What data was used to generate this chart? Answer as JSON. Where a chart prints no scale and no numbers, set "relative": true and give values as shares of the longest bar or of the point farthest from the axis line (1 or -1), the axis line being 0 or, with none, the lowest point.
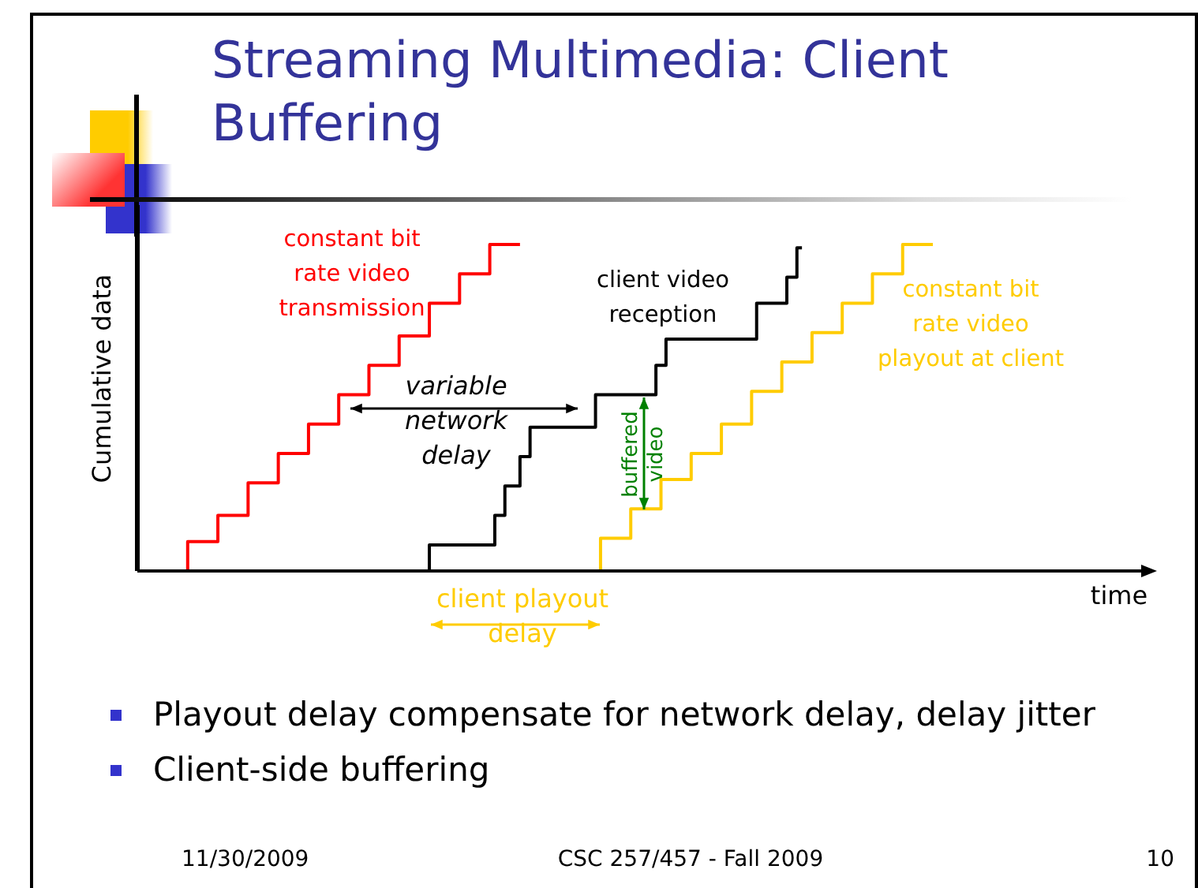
{
  "chart_data": {
    "type": "step",
    "title": "Streaming Multimedia: Client Buffering",
    "xlabel": "time",
    "ylabel": "Cumulative data",
    "relative": true,
    "marker": "none",
    "categories": [
      null,
      null,
      null,
      null,
      null,
      null,
      null,
      null,
      null,
      null,
      null,
      null,
      null,
      null,
      null,
      null,
      null,
      null,
      null,
      null,
      null,
      null,
      null,
      null,
      null,
      null,
      null,
      null,
      null,
      null,
      null,
      null,
      null,
      null,
      null,
      null,
      null,
      null,
      null,
      null,
      null,
      null,
      null,
      null,
      null,
      null,
      null,
      null,
      null,
      null,
      null,
      null,
      null,
      null,
      null,
      null,
      null,
      null,
      null,
      null,
      null,
      null,
      null,
      null,
      null,
      null,
      null,
      null,
      null,
      null,
      null,
      null,
      null,
      null,
      null,
      null,
      null,
      null,
      null,
      null,
      null,
      null,
      null,
      null,
      null,
      null,
      null,
      null,
      null,
      null,
      null,
      null,
      null,
      null,
      null,
      null,
      null,
      null,
      null,
      null,
      null,
      null,
      null,
      null,
      null,
      null,
      null,
      null,
      null,
      null,
      null,
      null,
      null,
      null,
      null,
      null,
      null,
      null,
      null,
      null,
      null,
      null,
      null,
      null,
      null,
      null,
      null,
      null,
      null,
      null,
      null,
      null,
      null,
      null,
      null,
      null,
      null,
      null,
      null,
      null,
      null,
      null,
      null,
      null,
      null,
      null,
      null,
      null,
      null,
      null,
      null,
      null,
      null,
      null,
      null,
      null,
      null,
      null,
      null,
      null,
      null,
      null,
      null,
      null,
      null,
      null,
      null,
      null,
      null,
      null,
      null,
      null,
      null,
      null,
      null,
      null,
      null,
      null,
      null,
      null,
      null,
      null,
      null,
      null,
      null,
      null,
      null,
      null,
      null,
      null,
      null,
      null,
      null,
      null,
      null,
      null,
      null,
      null,
      null,
      null,
      null
    ],
    "series": [
      {
        "name": "constant bit rate video transmission",
        "color": "#ff0000",
        "values": [
          null,
          null,
          null,
          null,
          null,
          null,
          null,
          null,
          null,
          null,
          0,
          0.09,
          0.09,
          0.09,
          0.09,
          0.09,
          0.09,
          0.17,
          0.17,
          0.17,
          0.17,
          0.17,
          0.17,
          0.27,
          0.27,
          0.27,
          0.27,
          0.27,
          0.27,
          0.36,
          0.36,
          0.36,
          0.36,
          0.36,
          0.36,
          0.45,
          0.45,
          0.45,
          0.45,
          0.45,
          0.45,
          0.54,
          0.54,
          0.54,
          0.54,
          0.54,
          0.54,
          0.63,
          0.63,
          0.63,
          0.63,
          0.63,
          0.63,
          0.72,
          0.72,
          0.72,
          0.72,
          0.72,
          0.72,
          0.82,
          0.82,
          0.82,
          0.82,
          0.82,
          0.82,
          0.91,
          0.91,
          0.91,
          0.91,
          0.91,
          0.91,
          1.0,
          1.0,
          1.0,
          1.0,
          1.0,
          1.0,
          null,
          null,
          null,
          null,
          null,
          null,
          null,
          null,
          null,
          null,
          null,
          null,
          null,
          null,
          null,
          null,
          null,
          null,
          null,
          null,
          null,
          null,
          null,
          null,
          null,
          null,
          null,
          null,
          null,
          null,
          null,
          null,
          null,
          null,
          null,
          null,
          null,
          null,
          null,
          null,
          null,
          null,
          null,
          null,
          null,
          null,
          null,
          null,
          null,
          null,
          null,
          null,
          null,
          null,
          null,
          null,
          null,
          null,
          null,
          null,
          null,
          null,
          null,
          null,
          null,
          null,
          null,
          null,
          null,
          null,
          null,
          null,
          null,
          null,
          null,
          null,
          null,
          null,
          null,
          null,
          null,
          null,
          null,
          null,
          null,
          null,
          null,
          null,
          null,
          null,
          null,
          null,
          null,
          null,
          null,
          null,
          null,
          null,
          null,
          null,
          null,
          null,
          null,
          null,
          null,
          null,
          null,
          null,
          null,
          null,
          null,
          null,
          null,
          null,
          null,
          null,
          null,
          null,
          null,
          null,
          null,
          null,
          null,
          null
        ]
      },
      {
        "name": "client video reception",
        "color": "#000000",
        "values": [
          null,
          null,
          null,
          null,
          null,
          null,
          null,
          null,
          null,
          null,
          null,
          null,
          null,
          null,
          null,
          null,
          null,
          null,
          null,
          null,
          null,
          null,
          null,
          null,
          null,
          null,
          null,
          null,
          null,
          null,
          null,
          null,
          null,
          null,
          null,
          null,
          null,
          null,
          null,
          null,
          null,
          null,
          null,
          null,
          null,
          null,
          null,
          null,
          null,
          null,
          null,
          null,
          null,
          null,
          null,
          null,
          null,
          null,
          0,
          0.08,
          0.08,
          0.08,
          0.08,
          0.08,
          0.08,
          0.08,
          0.08,
          0.08,
          0.08,
          0.08,
          0.08,
          0.08,
          0.17,
          0.17,
          0.26,
          0.26,
          0.26,
          0.35,
          0.35,
          0.44,
          0.44,
          0.44,
          0.44,
          0.44,
          0.44,
          0.44,
          0.44,
          0.44,
          0.44,
          0.44,
          0.44,
          0.44,
          0.54,
          0.54,
          0.54,
          0.54,
          0.54,
          0.54,
          0.54,
          0.54,
          0.54,
          0.54,
          0.54,
          0.54,
          0.63,
          0.63,
          0.71,
          0.71,
          0.71,
          0.71,
          0.71,
          0.71,
          0.71,
          0.71,
          0.71,
          0.71,
          0.71,
          0.71,
          0.71,
          0.71,
          0.71,
          0.71,
          0.71,
          0.71,
          0.82,
          0.82,
          0.82,
          0.82,
          0.82,
          0.82,
          0.9,
          0.9,
          0.99,
          null,
          null,
          null,
          null,
          null,
          null,
          null,
          null,
          null,
          null,
          null,
          null,
          null,
          null,
          null,
          null,
          null,
          null,
          null,
          null,
          null,
          null,
          null,
          null,
          null,
          null,
          null,
          null,
          null,
          null,
          null,
          null,
          null,
          null,
          null,
          null,
          null,
          null,
          null,
          null,
          null,
          null,
          null,
          null,
          null,
          null,
          null,
          null,
          null,
          null,
          null,
          null,
          null,
          null,
          null,
          null,
          null,
          null,
          null,
          null,
          null,
          null,
          null,
          null,
          null,
          null,
          null,
          null
        ]
      },
      {
        "name": "constant bit rate video playout at client",
        "color": "#ffcc00",
        "values": [
          null,
          null,
          null,
          null,
          null,
          null,
          null,
          null,
          null,
          null,
          null,
          null,
          null,
          null,
          null,
          null,
          null,
          null,
          null,
          null,
          null,
          null,
          null,
          null,
          null,
          null,
          null,
          null,
          null,
          null,
          null,
          null,
          null,
          null,
          null,
          null,
          null,
          null,
          null,
          null,
          null,
          null,
          null,
          null,
          null,
          null,
          null,
          null,
          null,
          null,
          null,
          null,
          null,
          null,
          null,
          null,
          null,
          null,
          null,
          null,
          null,
          null,
          null,
          null,
          null,
          null,
          null,
          null,
          null,
          null,
          null,
          null,
          null,
          null,
          null,
          null,
          null,
          null,
          null,
          null,
          null,
          null,
          null,
          null,
          null,
          null,
          null,
          null,
          null,
          null,
          null,
          null,
          0,
          0.1,
          0.1,
          0.1,
          0.1,
          0.1,
          0.1,
          0.19,
          0.19,
          0.19,
          0.19,
          0.19,
          0.19,
          0.28,
          0.28,
          0.28,
          0.28,
          0.28,
          0.28,
          0.36,
          0.36,
          0.36,
          0.36,
          0.36,
          0.36,
          0.45,
          0.45,
          0.45,
          0.45,
          0.45,
          0.45,
          0.55,
          0.55,
          0.55,
          0.55,
          0.55,
          0.55,
          0.64,
          0.64,
          0.64,
          0.64,
          0.64,
          0.64,
          0.73,
          0.73,
          0.73,
          0.73,
          0.73,
          0.73,
          0.82,
          0.82,
          0.82,
          0.82,
          0.82,
          0.82,
          0.91,
          0.91,
          0.91,
          0.91,
          0.91,
          0.91,
          1.0,
          1.0,
          1.0,
          1.0,
          1.0,
          1.0,
          null,
          null,
          null,
          null,
          null,
          null,
          null,
          null,
          null,
          null,
          null,
          null,
          null,
          null,
          null,
          null,
          null,
          null,
          null,
          null,
          null,
          null,
          null,
          null,
          null,
          null,
          null,
          null,
          null,
          null,
          null,
          null,
          null,
          null,
          null,
          null,
          null,
          null,
          null,
          null,
          null,
          null
        ]
      }
    ],
    "annotations": [
      "variable network delay",
      "buffered video",
      "client playout delay",
      "Playout delay compensate for network delay, delay jitter",
      "Client-side buffering",
      "11/30/2009",
      "CSC 257/457 - Fall 2009",
      "10"
    ]
  }
}
